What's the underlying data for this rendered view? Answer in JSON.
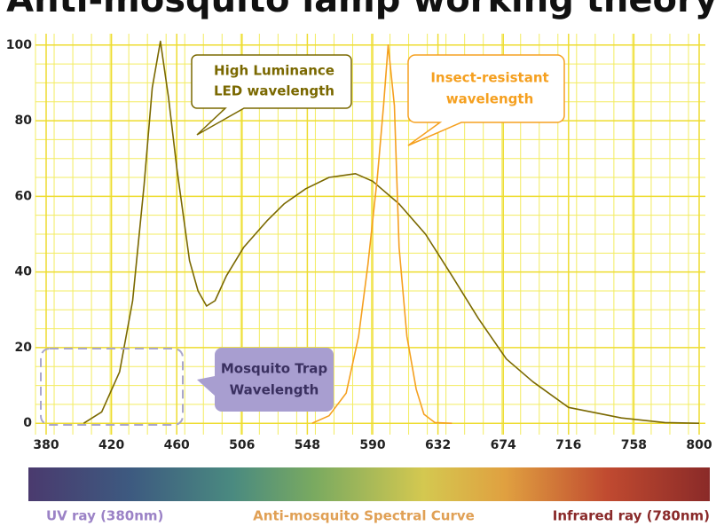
{
  "chart_data": {
    "type": "line",
    "title": "Anti-mosquito lamp working theory",
    "xticks": [
      380,
      420,
      460,
      506,
      548,
      590,
      632,
      674,
      716,
      758,
      800
    ],
    "xlim": [
      380,
      800
    ],
    "ylim": [
      -3,
      103
    ],
    "yticks": [
      0,
      20,
      40,
      60,
      80,
      100
    ],
    "grid": true,
    "series": [
      {
        "color": "#7a6800",
        "x": [
          403,
          414,
          425,
          433,
          440,
          445,
          450,
          455,
          460,
          469,
          475,
          481,
          487,
          495,
          507,
          522,
          533,
          547,
          562,
          579,
          590,
          607,
          624,
          641,
          658,
          676,
          693,
          716,
          750,
          778,
          800
        ],
        "values": [
          0,
          3,
          13.6,
          32.4,
          63,
          88.7,
          101,
          86,
          67.6,
          43,
          35,
          31,
          32.4,
          39,
          46.5,
          53.5,
          58,
          62,
          65,
          66,
          64,
          58,
          50,
          39,
          27.7,
          17,
          11,
          4.2,
          1.4,
          0.2,
          0
        ]
      },
      {
        "color": "#f5a020",
        "x": [
          551,
          562,
          573,
          581,
          587,
          593,
          597,
          600,
          604,
          607,
          612,
          618,
          623,
          630,
          641
        ],
        "values": [
          0,
          2,
          8,
          23,
          42,
          65,
          84,
          100,
          84,
          46.5,
          23,
          9,
          2.4,
          0.2,
          0
        ]
      }
    ],
    "annotations": [
      {
        "lines": [
          "High Luminance",
          "LED wavelength"
        ],
        "color": "#7a6800"
      },
      {
        "lines": [
          "Insect-resistant",
          "wavelength"
        ],
        "color": "#f5a020"
      },
      {
        "lines": [
          "Mosquito Trap",
          "Wavelength"
        ],
        "color": "#3a3060"
      }
    ],
    "footer": [
      "UV ray (380nm)",
      "Anti-mosquito Spectral Curve",
      "Infrared ray (780nm)"
    ]
  }
}
